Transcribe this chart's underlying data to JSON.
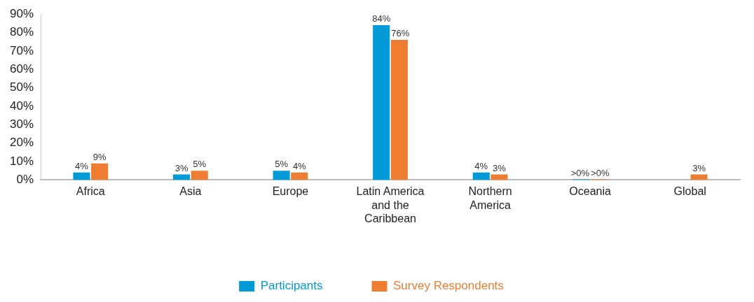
{
  "chart_data": {
    "type": "bar",
    "categories": [
      "Africa",
      "Asia",
      "Europe",
      "Latin America and the Caribbean",
      "Northern America",
      "Oceania",
      "Global"
    ],
    "series": [
      {
        "name": "Participants",
        "color": "#009ad8",
        "values": [
          4,
          3,
          5,
          84,
          4,
          0.3,
          null
        ],
        "value_labels": [
          "4%",
          "3%",
          "5%",
          "84%",
          "4%",
          ">0%",
          null
        ]
      },
      {
        "name": "Survey Respondents",
        "color": "#ee7d31",
        "values": [
          9,
          5,
          4,
          76,
          3,
          0.3,
          3
        ],
        "value_labels": [
          "9%",
          "5%",
          "4%",
          "76%",
          "3%",
          ">0%",
          "3%"
        ]
      }
    ],
    "ylim": [
      0,
      90
    ],
    "yticks": [
      {
        "value": 0,
        "label": "0%"
      },
      {
        "value": 10,
        "label": "10%"
      },
      {
        "value": 20,
        "label": "20%"
      },
      {
        "value": 30,
        "label": "30%"
      },
      {
        "value": 40,
        "label": "40%"
      },
      {
        "value": 50,
        "label": "50%"
      },
      {
        "value": 60,
        "label": "60%"
      },
      {
        "value": 70,
        "label": "70%"
      },
      {
        "value": 80,
        "label": "80%"
      },
      {
        "value": 90,
        "label": "90%"
      }
    ],
    "grid": false,
    "legend": "bottom"
  }
}
